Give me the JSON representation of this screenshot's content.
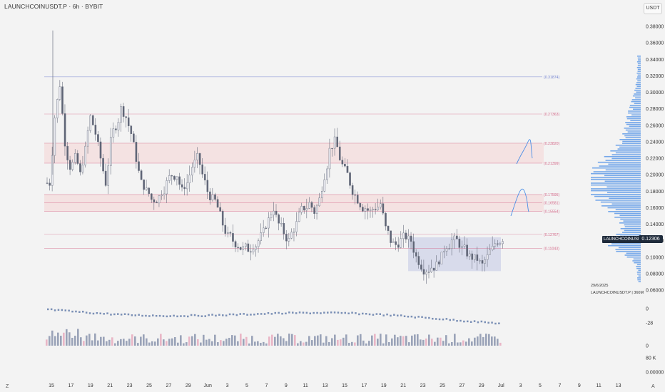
{
  "header": {
    "symbol_title": "LAUNCHCOINUSDT.P · 6h · BYBIT",
    "unit_label": "USDT"
  },
  "price_axis": {
    "ticks": [
      "0.38000",
      "0.36000",
      "0.34000",
      "0.32000",
      "0.30000",
      "0.28000",
      "0.26000",
      "0.24000",
      "0.22000",
      "0.20000",
      "0.18000",
      "0.16000",
      "0.14000",
      "0.12000",
      "0.10000",
      "0.08000",
      "0.06000"
    ],
    "current_price": "0.12306",
    "symbol_label": "LAUNCHCOINUSDT.P"
  },
  "indicator_axis": {
    "osc_ticks": [
      "0",
      "-28"
    ],
    "vol_ticks": [
      "0",
      "80 K",
      "0.00000"
    ]
  },
  "time_axis": {
    "labels": [
      "15",
      "17",
      "19",
      "21",
      "23",
      "25",
      "27",
      "29",
      "Jun",
      "3",
      "5",
      "7",
      "9",
      "11",
      "13",
      "15",
      "17",
      "19",
      "21",
      "23",
      "25",
      "27",
      "29",
      "Jul",
      "3",
      "5",
      "7",
      "9",
      "11",
      "13"
    ]
  },
  "levels": [
    {
      "label": "(0.31874)",
      "price": 0.31874,
      "color": "#6f7fd0"
    },
    {
      "label": "(0.27363)",
      "price": 0.27363,
      "color": "#d46a8a"
    },
    {
      "label": "(0.23820)",
      "price": 0.2382,
      "color": "#d46a8a"
    },
    {
      "label": "(0.21399)",
      "price": 0.21399,
      "color": "#d46a8a"
    },
    {
      "label": "(0.17595)",
      "price": 0.17595,
      "color": "#d46a8a"
    },
    {
      "label": "(0.16581)",
      "price": 0.16581,
      "color": "#d46a8a"
    },
    {
      "label": "(0.15554)",
      "price": 0.15554,
      "color": "#d46a8a"
    },
    {
      "label": "(0.12767)",
      "price": 0.12767,
      "color": "#d46a8a"
    },
    {
      "label": "(0.11043)",
      "price": 0.11043,
      "color": "#d46a8a"
    }
  ],
  "notes": {
    "date": "29/6/2025",
    "source": "LAUNCHCOINUSDT.P | 360M"
  },
  "corners": {
    "left": "Z",
    "right": "A"
  },
  "colors": {
    "candle": "#6b7180",
    "zone": "#f4dada",
    "box": "#c7cbe6",
    "profile": "#4a8ee6",
    "volume": "#9aa3b8",
    "volume_pink": "#e9b6c6"
  },
  "chart_data": {
    "type": "candlestick",
    "instrument": "LAUNCHCOINUSDT.P",
    "timeframe": "6h",
    "exchange": "BYBIT",
    "y_range": [
      0.06,
      0.38
    ],
    "x_range": [
      "May 15",
      "Jun 30"
    ],
    "close_series": [
      0.19,
      0.27,
      0.31,
      0.24,
      0.21,
      0.22,
      0.2,
      0.23,
      0.27,
      0.25,
      0.22,
      0.19,
      0.24,
      0.26,
      0.28,
      0.27,
      0.25,
      0.22,
      0.19,
      0.18,
      0.17,
      0.17,
      0.18,
      0.19,
      0.2,
      0.2,
      0.18,
      0.19,
      0.21,
      0.22,
      0.2,
      0.18,
      0.17,
      0.16,
      0.14,
      0.125,
      0.12,
      0.115,
      0.11,
      0.11,
      0.115,
      0.12,
      0.13,
      0.145,
      0.16,
      0.14,
      0.13,
      0.12,
      0.135,
      0.15,
      0.16,
      0.165,
      0.155,
      0.17,
      0.2,
      0.23,
      0.24,
      0.22,
      0.205,
      0.19,
      0.175,
      0.165,
      0.16,
      0.155,
      0.16,
      0.165,
      0.135,
      0.12,
      0.115,
      0.12,
      0.125,
      0.12,
      0.1,
      0.09,
      0.085,
      0.088,
      0.09,
      0.1,
      0.115,
      0.12,
      0.12,
      0.11,
      0.105,
      0.1,
      0.098,
      0.09,
      0.1,
      0.11,
      0.12,
      0.123
    ],
    "current": 0.12306
  }
}
